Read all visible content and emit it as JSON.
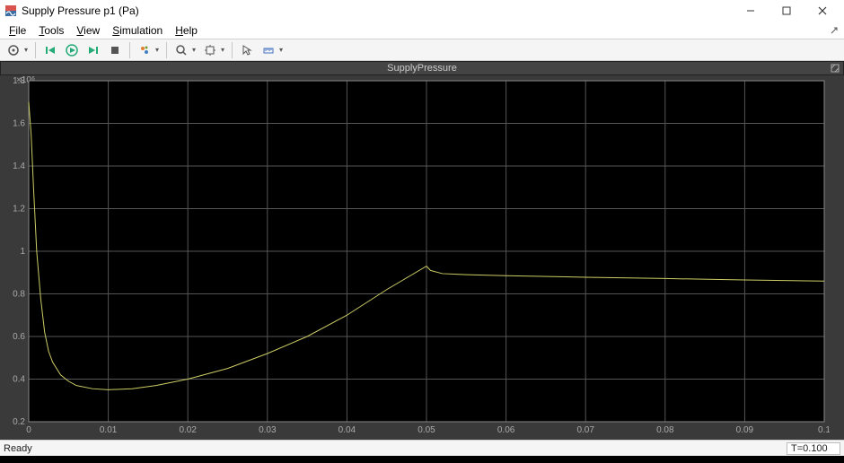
{
  "window": {
    "title": "Supply Pressure p1 (Pa)",
    "app_icon_color_top": "#d9534f",
    "app_icon_color_bottom": "#3a6ea5"
  },
  "menubar": {
    "items": [
      {
        "label": "File",
        "accel": "F"
      },
      {
        "label": "Tools",
        "accel": "T"
      },
      {
        "label": "View",
        "accel": "V"
      },
      {
        "label": "Simulation",
        "accel": "S"
      },
      {
        "label": "Help",
        "accel": "H"
      }
    ]
  },
  "toolbar": {
    "icons": [
      "print",
      "step-back",
      "run",
      "step-forward",
      "stop",
      "highlight",
      "zoom",
      "fit",
      "cursor",
      "measure"
    ]
  },
  "plot": {
    "title": "SupplyPressure",
    "type": "line",
    "background_color": "#000000",
    "container_color": "#3a3a3a",
    "grid_color": "#555555",
    "frame_color": "#888888",
    "tick_label_color": "#aaaaaa",
    "line_color": "#cccc66",
    "axis_exponent_label": "×10⁶",
    "xlim": [
      0,
      0.1
    ],
    "ylim": [
      0.2,
      1.8
    ],
    "xtick_start": 0,
    "xtick_step": 0.01,
    "ytick_start": 0.2,
    "ytick_step": 0.2,
    "xtick_labels": [
      "0",
      "0.01",
      "0.02",
      "0.03",
      "0.04",
      "0.05",
      "0.06",
      "0.07",
      "0.08",
      "0.09",
      "0.1"
    ],
    "ytick_labels": [
      "0.2",
      "0.4",
      "0.6",
      "0.8",
      "1",
      "1.2",
      "1.4",
      "1.6",
      "1.8"
    ],
    "series": {
      "x": [
        0,
        0.0003,
        0.0006,
        0.001,
        0.0015,
        0.002,
        0.0025,
        0.003,
        0.004,
        0.005,
        0.006,
        0.008,
        0.01,
        0.013,
        0.016,
        0.02,
        0.025,
        0.03,
        0.035,
        0.04,
        0.045,
        0.05,
        0.0505,
        0.052,
        0.055,
        0.06,
        0.07,
        0.08,
        0.09,
        0.1
      ],
      "y": [
        1.7,
        1.55,
        1.3,
        1.0,
        0.78,
        0.62,
        0.53,
        0.48,
        0.42,
        0.39,
        0.37,
        0.355,
        0.35,
        0.355,
        0.37,
        0.4,
        0.45,
        0.52,
        0.6,
        0.7,
        0.82,
        0.93,
        0.91,
        0.895,
        0.89,
        0.885,
        0.878,
        0.872,
        0.865,
        0.86
      ]
    },
    "line_width": 1,
    "tick_fontsize": 10,
    "title_fontsize": 11
  },
  "statusbar": {
    "left": "Ready",
    "right": "T=0.100"
  }
}
